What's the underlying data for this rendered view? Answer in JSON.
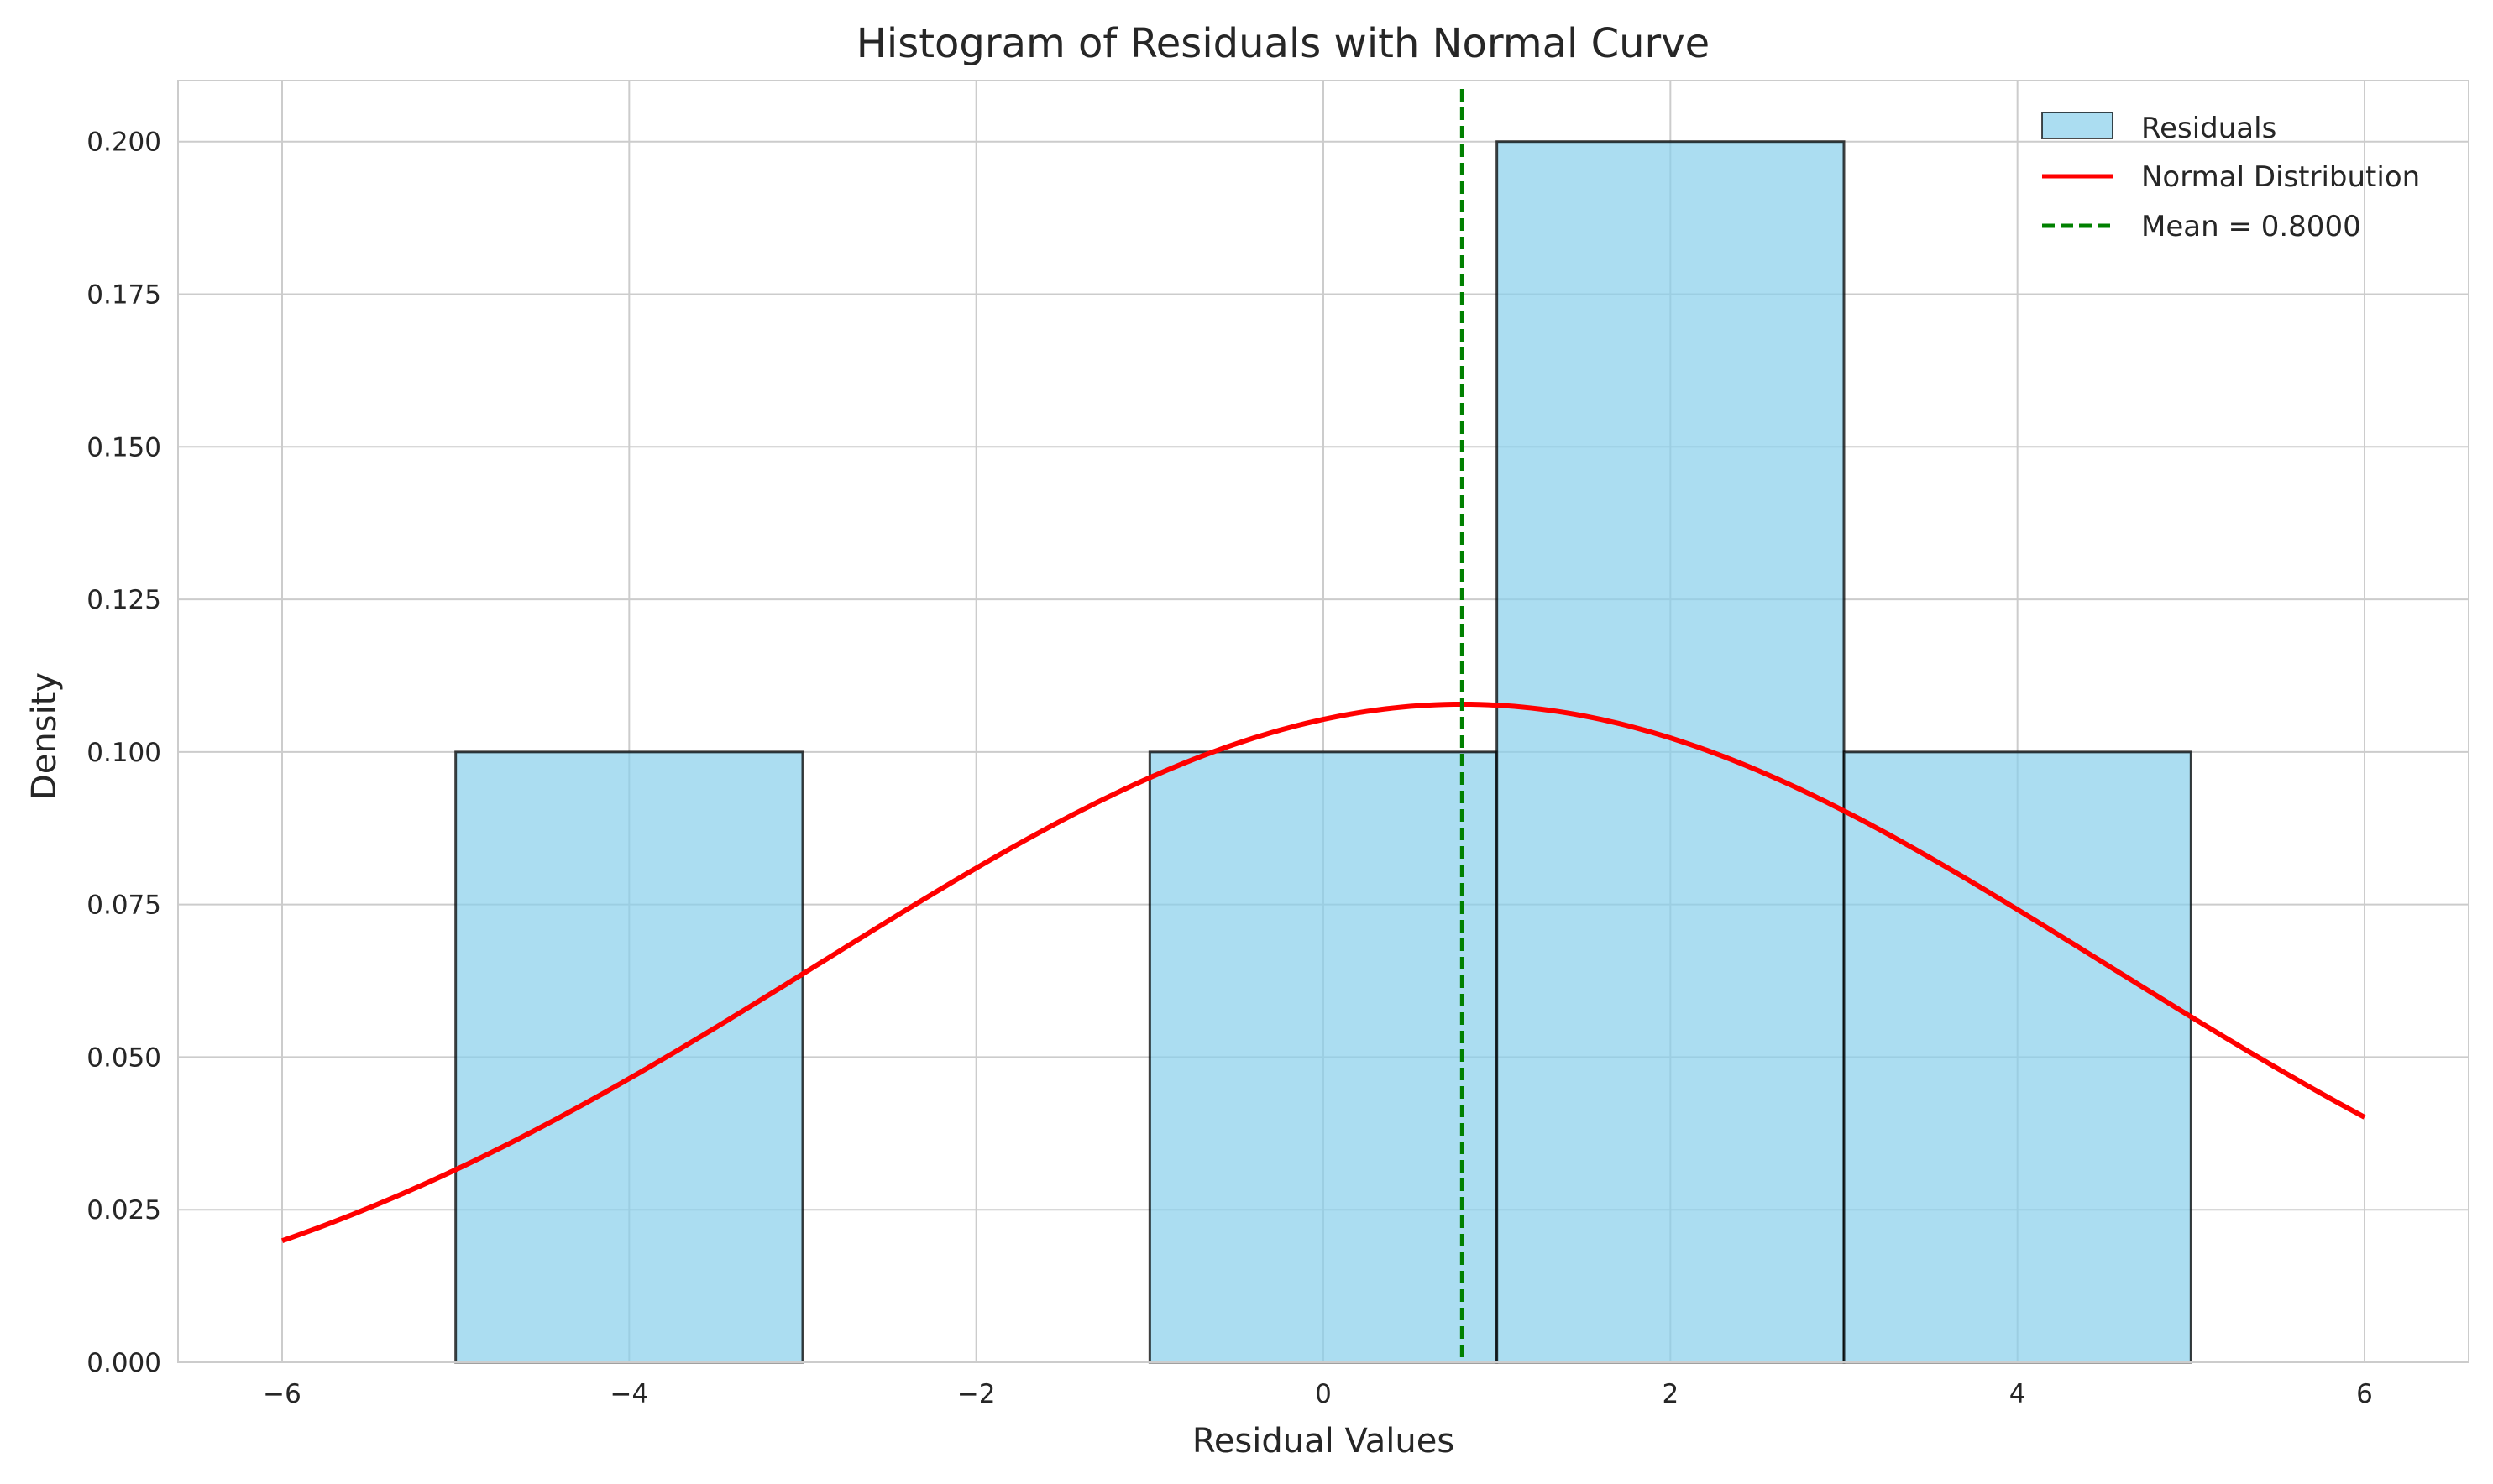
{
  "chart_data": {
    "type": "bar",
    "title": "Histogram of Residuals with Normal Curve",
    "xlabel": "Residual Values",
    "ylabel": "Density",
    "xlim": [
      -6.6,
      6.6
    ],
    "ylim": [
      0,
      0.21
    ],
    "grid": true,
    "legend_position": "top-right",
    "x_ticks": [
      "−6",
      "−4",
      "−2",
      "0",
      "2",
      "4",
      "6"
    ],
    "x_tick_values": [
      -6,
      -4,
      -2,
      0,
      2,
      4,
      6
    ],
    "y_ticks": [
      "0.000",
      "0.025",
      "0.050",
      "0.075",
      "0.100",
      "0.125",
      "0.150",
      "0.175",
      "0.200"
    ],
    "y_tick_values": [
      0,
      0.025,
      0.05,
      0.075,
      0.1,
      0.125,
      0.15,
      0.175,
      0.2
    ],
    "histogram": {
      "name": "Residuals",
      "bins": [
        {
          "x0": -5,
          "x1": -3,
          "density": 0.1
        },
        {
          "x0": -1,
          "x1": 1,
          "density": 0.1
        },
        {
          "x0": 1,
          "x1": 3,
          "density": 0.2
        },
        {
          "x0": 3,
          "x1": 5,
          "density": 0.1
        }
      ],
      "fill_color": "#87ceeb",
      "edge_color": "#000000"
    },
    "normal_curve": {
      "name": "Normal Distribution",
      "mean": 0.8,
      "std": 3.7,
      "x_range": [
        -6,
        6
      ],
      "color": "#ff0000"
    },
    "mean_line": {
      "name": "Mean = 0.8000",
      "x": 0.8,
      "color": "#008000"
    }
  }
}
